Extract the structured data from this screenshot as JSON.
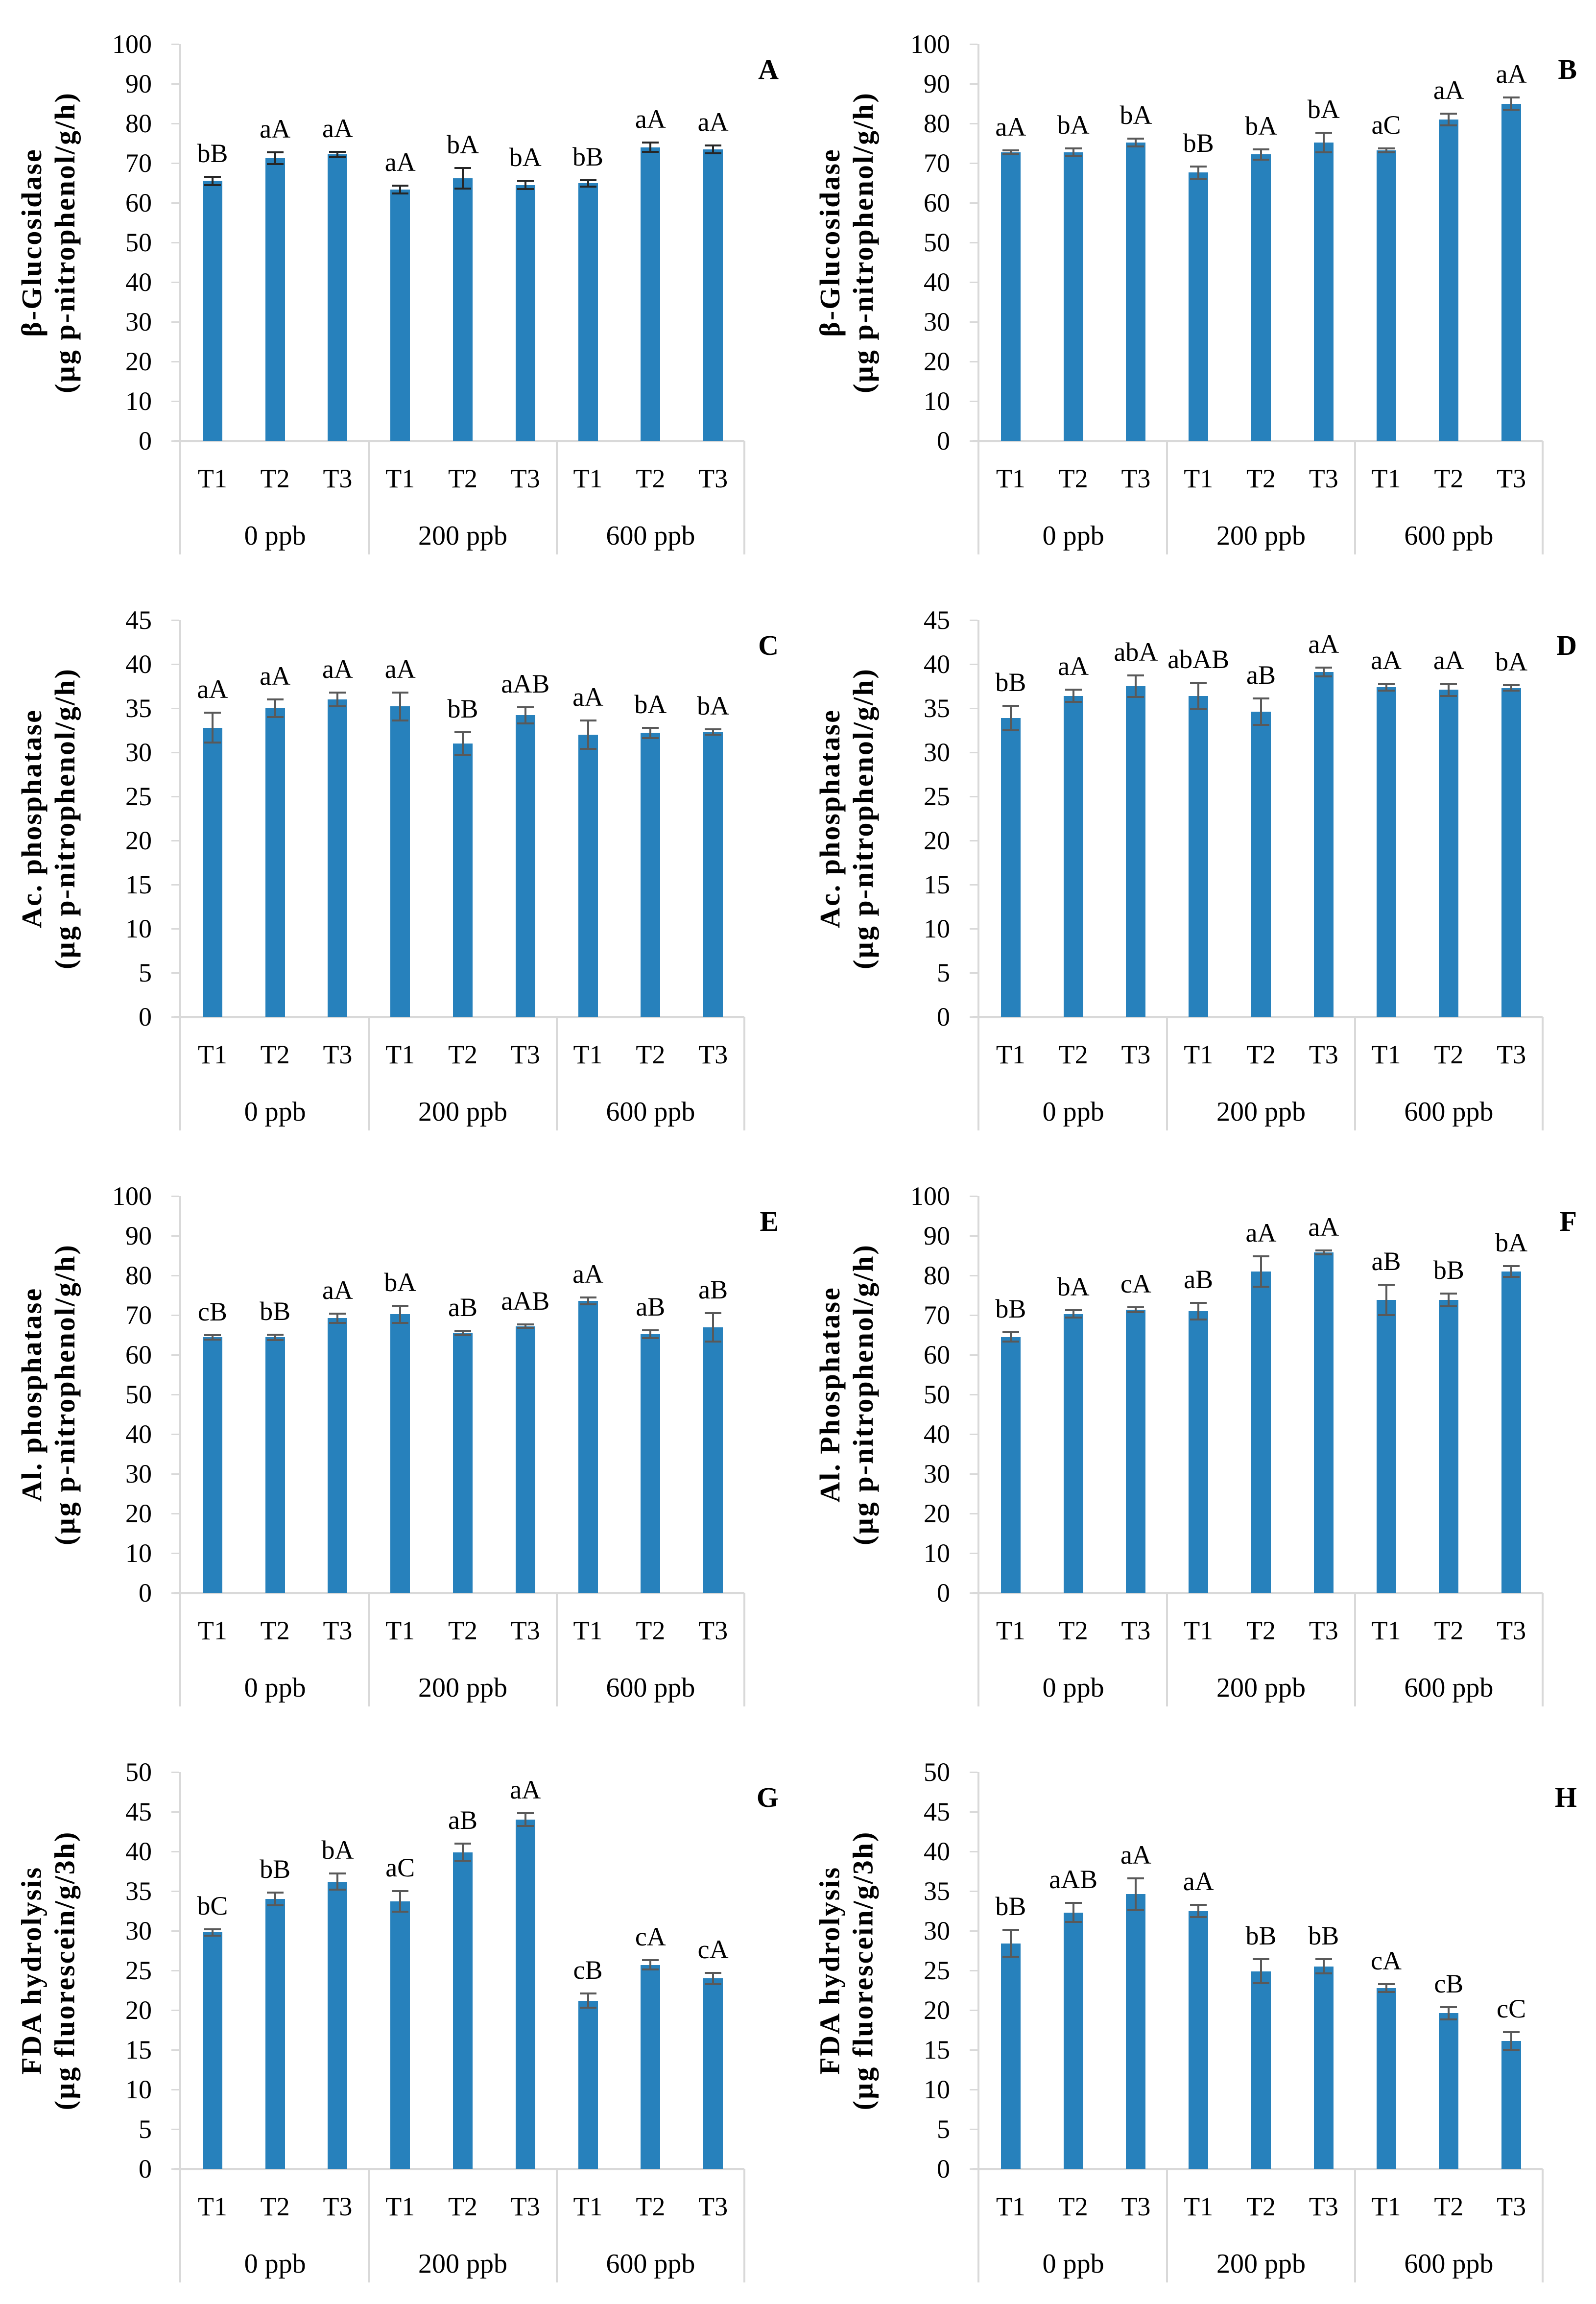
{
  "colors": {
    "bar": "#2781BC",
    "axis": "#D9D9D9",
    "text": "#000000"
  },
  "treatments": [
    "T1",
    "T2",
    "T3"
  ],
  "dose_groups": [
    "0 ppb",
    "200 ppb",
    "600 ppb"
  ],
  "chart_data": [
    {
      "panel": "A",
      "type": "bar",
      "ylabel": "β-Glucosidase",
      "yunit": "(µg p-nitrophenol/g/h)",
      "ymax": 100,
      "ystep": 10,
      "group_labels": [
        "0 ppb",
        "200 ppb",
        "600 ppb"
      ],
      "categories": [
        "T1",
        "T2",
        "T3",
        "T1",
        "T2",
        "T3",
        "T1",
        "T2",
        "T3"
      ],
      "values": [
        65.5,
        71.2,
        72.2,
        63.3,
        66.2,
        64.5,
        64.9,
        74.0,
        73.5
      ],
      "errors": [
        1.0,
        1.5,
        0.7,
        1.0,
        2.6,
        1.0,
        0.8,
        1.2,
        1.0
      ],
      "sig_labels": [
        "bB",
        "aA",
        "aA",
        "aA",
        "bA",
        "bA",
        "bB",
        "aA",
        "aA"
      ],
      "error_color": "#262626"
    },
    {
      "panel": "B",
      "type": "bar",
      "ylabel": "β-Glucosidase",
      "yunit": "(µg p-nitrophenol/g/h)",
      "ymax": 100,
      "ystep": 10,
      "group_labels": [
        "0 ppb",
        "200 ppb",
        "600 ppb"
      ],
      "categories": [
        "T1",
        "T2",
        "T3",
        "T1",
        "T2",
        "T3",
        "T1",
        "T2",
        "T3"
      ],
      "values": [
        72.7,
        72.7,
        75.2,
        67.6,
        72.2,
        75.2,
        73.2,
        81.0,
        85.0
      ],
      "errors": [
        0.5,
        1.0,
        1.0,
        1.5,
        1.3,
        2.5,
        0.5,
        1.5,
        1.5
      ],
      "sig_labels": [
        "aA",
        "bA",
        "bA",
        "bB",
        "bA",
        "bA",
        "aC",
        "aA",
        "aA"
      ],
      "error_color": "#595959"
    },
    {
      "panel": "C",
      "type": "bar",
      "ylabel": "Ac. phosphatase",
      "yunit": "(µg p-nitrophenol/g/h)",
      "ymax": 45,
      "ystep": 5,
      "group_labels": [
        "0 ppb",
        "200 ppb",
        "600 ppb"
      ],
      "categories": [
        "T1",
        "T2",
        "T3",
        "T1",
        "T2",
        "T3",
        "T1",
        "T2",
        "T3"
      ],
      "values": [
        32.8,
        35.0,
        36.0,
        35.2,
        31.0,
        34.2,
        32.0,
        32.2,
        32.3
      ],
      "errors": [
        1.7,
        1.0,
        0.8,
        1.6,
        1.3,
        0.9,
        1.6,
        0.6,
        0.3
      ],
      "sig_labels": [
        "aA",
        "aA",
        "aA",
        "aA",
        "bB",
        "aAB",
        "aA",
        "bA",
        "bA"
      ],
      "error_color": "#595959"
    },
    {
      "panel": "D",
      "type": "bar",
      "ylabel": "Ac. phosphatase",
      "yunit": "(µg p-nitrophenol/g/h)",
      "ymax": 45,
      "ystep": 5,
      "group_labels": [
        "0 ppb",
        "200 ppb",
        "600 ppb"
      ],
      "categories": [
        "T1",
        "T2",
        "T3",
        "T1",
        "T2",
        "T3",
        "T1",
        "T2",
        "T3"
      ],
      "values": [
        33.9,
        36.4,
        37.5,
        36.4,
        34.6,
        39.1,
        37.4,
        37.1,
        37.3
      ],
      "errors": [
        1.4,
        0.7,
        1.2,
        1.5,
        1.5,
        0.5,
        0.4,
        0.7,
        0.3
      ],
      "sig_labels": [
        "bB",
        "aA",
        "abA",
        "abAB",
        "aB",
        "aA",
        "aA",
        "aA",
        "bA"
      ],
      "error_color": "#595959"
    },
    {
      "panel": "E",
      "type": "bar",
      "ylabel": "Al. phosphatase",
      "yunit": "(µg p-nitrophenol/g/h)",
      "ymax": 100,
      "ystep": 10,
      "group_labels": [
        "0 ppb",
        "200 ppb",
        "600 ppb"
      ],
      "categories": [
        "T1",
        "T2",
        "T3",
        "T1",
        "T2",
        "T3",
        "T1",
        "T2",
        "T3"
      ],
      "values": [
        64.4,
        64.4,
        69.2,
        70.2,
        65.5,
        67.2,
        73.6,
        65.2,
        66.9
      ],
      "errors": [
        0.6,
        0.7,
        1.2,
        2.2,
        0.6,
        0.4,
        0.9,
        1.0,
        3.6
      ],
      "sig_labels": [
        "cB",
        "bB",
        "aA",
        "bA",
        "aB",
        "aAB",
        "aA",
        "aB",
        "aB"
      ],
      "error_color": "#595959"
    },
    {
      "panel": "F",
      "type": "bar",
      "ylabel": "Al. Phosphatase",
      "yunit": "(µg p-nitrophenol/g/h)",
      "ymax": 100,
      "ystep": 10,
      "group_labels": [
        "0 ppb",
        "200 ppb",
        "600 ppb"
      ],
      "categories": [
        "T1",
        "T2",
        "T3",
        "T1",
        "T2",
        "T3",
        "T1",
        "T2",
        "T3"
      ],
      "values": [
        64.5,
        70.3,
        71.4,
        71.0,
        81.0,
        85.8,
        73.8,
        73.8,
        81.0
      ],
      "errors": [
        1.2,
        0.9,
        0.6,
        2.1,
        3.8,
        0.5,
        3.8,
        1.6,
        1.4
      ],
      "sig_labels": [
        "bB",
        "bA",
        "cA",
        "aB",
        "aA",
        "aA",
        "aB",
        "bB",
        "bA"
      ],
      "error_color": "#595959"
    },
    {
      "panel": "G",
      "type": "bar",
      "ylabel": "FDA hydrolysis",
      "yunit": "(µg fluorescein/g/3h)",
      "ymax": 50,
      "ystep": 5,
      "group_labels": [
        "0 ppb",
        "200 ppb",
        "600 ppb"
      ],
      "categories": [
        "T1",
        "T2",
        "T3",
        "T1",
        "T2",
        "T3",
        "T1",
        "T2",
        "T3"
      ],
      "values": [
        29.8,
        34.0,
        36.2,
        33.7,
        39.9,
        44.0,
        21.2,
        25.7,
        24.0
      ],
      "errors": [
        0.4,
        0.8,
        1.0,
        1.3,
        1.1,
        0.8,
        0.9,
        0.6,
        0.7
      ],
      "sig_labels": [
        "bC",
        "bB",
        "bA",
        "aC",
        "aB",
        "aA",
        "cB",
        "cA",
        "cA"
      ],
      "error_color": "#595959"
    },
    {
      "panel": "H",
      "type": "bar",
      "ylabel": "FDA hydrolysis",
      "yunit": "(µg fluorescein/g/3h)",
      "ymax": 50,
      "ystep": 5,
      "group_labels": [
        "0 ppb",
        "200 ppb",
        "600 ppb"
      ],
      "categories": [
        "T1",
        "T2",
        "T3",
        "T1",
        "T2",
        "T3",
        "T1",
        "T2",
        "T3"
      ],
      "values": [
        28.4,
        32.3,
        34.6,
        32.5,
        24.9,
        25.5,
        22.8,
        19.6,
        16.1
      ],
      "errors": [
        1.7,
        1.2,
        2.0,
        0.8,
        1.5,
        0.9,
        0.5,
        0.8,
        1.1
      ],
      "sig_labels": [
        "bB",
        "aAB",
        "aA",
        "aA",
        "bB",
        "bB",
        "cA",
        "cB",
        "cC"
      ],
      "error_color": "#595959"
    }
  ]
}
